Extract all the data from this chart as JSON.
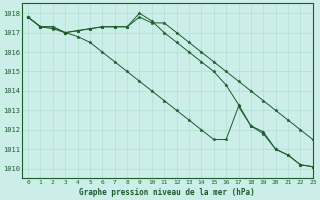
{
  "title": "Graphe pression niveau de la mer (hPa)",
  "background_color": "#cceee8",
  "plot_bg_color": "#cceee8",
  "grid_color": "#b0ddd4",
  "line_color": "#1a5c2a",
  "xlim": [
    -0.5,
    23
  ],
  "ylim": [
    1009.5,
    1018.5
  ],
  "yticks": [
    1010,
    1011,
    1012,
    1013,
    1014,
    1015,
    1016,
    1017,
    1018
  ],
  "xticks": [
    0,
    1,
    2,
    3,
    4,
    5,
    6,
    7,
    8,
    9,
    10,
    11,
    12,
    13,
    14,
    15,
    16,
    17,
    18,
    19,
    20,
    21,
    22,
    23
  ],
  "line1": [
    1017.8,
    1017.3,
    1017.3,
    1017.0,
    1017.1,
    1017.2,
    1017.3,
    1017.3,
    1017.3,
    1017.8,
    1017.5,
    1017.5,
    1017.0,
    1016.5,
    1016.0,
    1015.5,
    1015.0,
    1014.5,
    1014.0,
    1013.5,
    1013.0,
    1012.5,
    1012.0,
    1011.5
  ],
  "line2": [
    1017.8,
    1017.3,
    1017.3,
    1017.0,
    1017.1,
    1017.2,
    1017.3,
    1017.3,
    1017.3,
    1018.0,
    1017.6,
    1017.0,
    1016.5,
    1016.0,
    1015.5,
    1015.0,
    1014.3,
    1013.3,
    1012.2,
    1011.8,
    1011.0,
    1010.7,
    1010.2,
    1010.1
  ],
  "line3": [
    1017.8,
    1017.3,
    1017.2,
    1017.0,
    1016.8,
    1016.5,
    1016.0,
    1015.5,
    1015.0,
    1014.5,
    1014.0,
    1013.5,
    1013.0,
    1012.5,
    1012.0,
    1011.5,
    1011.5,
    1013.2,
    1012.2,
    1011.9,
    1011.0,
    1010.7,
    1010.2,
    1010.1
  ],
  "ylabel_fontsize": 5,
  "xlabel_fontsize": 5.5,
  "tick_fontsize": 4.5
}
